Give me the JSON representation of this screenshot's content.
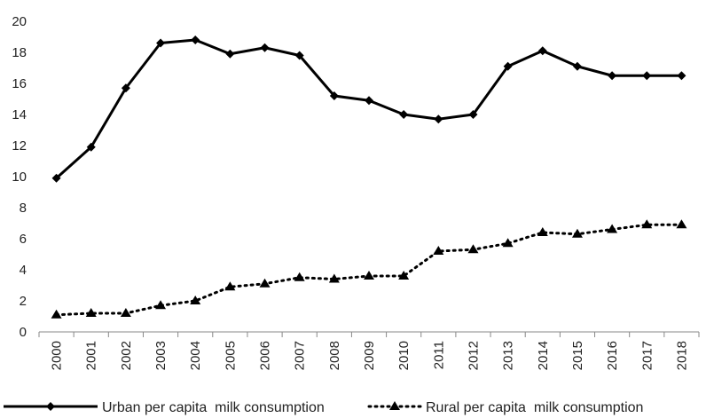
{
  "chart_data": {
    "type": "line",
    "title": "",
    "xlabel": "",
    "ylabel": "",
    "ylim": [
      0,
      20
    ],
    "yticks": [
      0,
      2,
      4,
      6,
      8,
      10,
      12,
      14,
      16,
      18,
      20
    ],
    "grid": false,
    "legend": "bottom",
    "categories": [
      "2000",
      "2001",
      "2002",
      "2003",
      "2004",
      "2005",
      "2006",
      "2007",
      "2008",
      "2009",
      "2010",
      "2011",
      "2012",
      "2013",
      "2014",
      "2015",
      "2016",
      "2017",
      "2018"
    ],
    "series": [
      {
        "name": "Urban per capita  milk consumption",
        "values": [
          9.9,
          11.9,
          15.7,
          18.6,
          18.8,
          17.9,
          18.3,
          17.8,
          15.2,
          14.9,
          14.0,
          13.7,
          14.0,
          17.1,
          18.1,
          17.1,
          16.5,
          16.5,
          16.5
        ],
        "line_style": "solid",
        "marker": "diamond",
        "color": "#000000"
      },
      {
        "name": "Rural per capita  milk consumption",
        "values": [
          1.1,
          1.2,
          1.2,
          1.7,
          2.0,
          2.9,
          3.1,
          3.5,
          3.4,
          3.6,
          3.6,
          5.2,
          5.3,
          5.7,
          6.4,
          6.3,
          6.6,
          6.9,
          6.9
        ],
        "line_style": "dotted",
        "marker": "triangle",
        "color": "#000000"
      }
    ]
  }
}
